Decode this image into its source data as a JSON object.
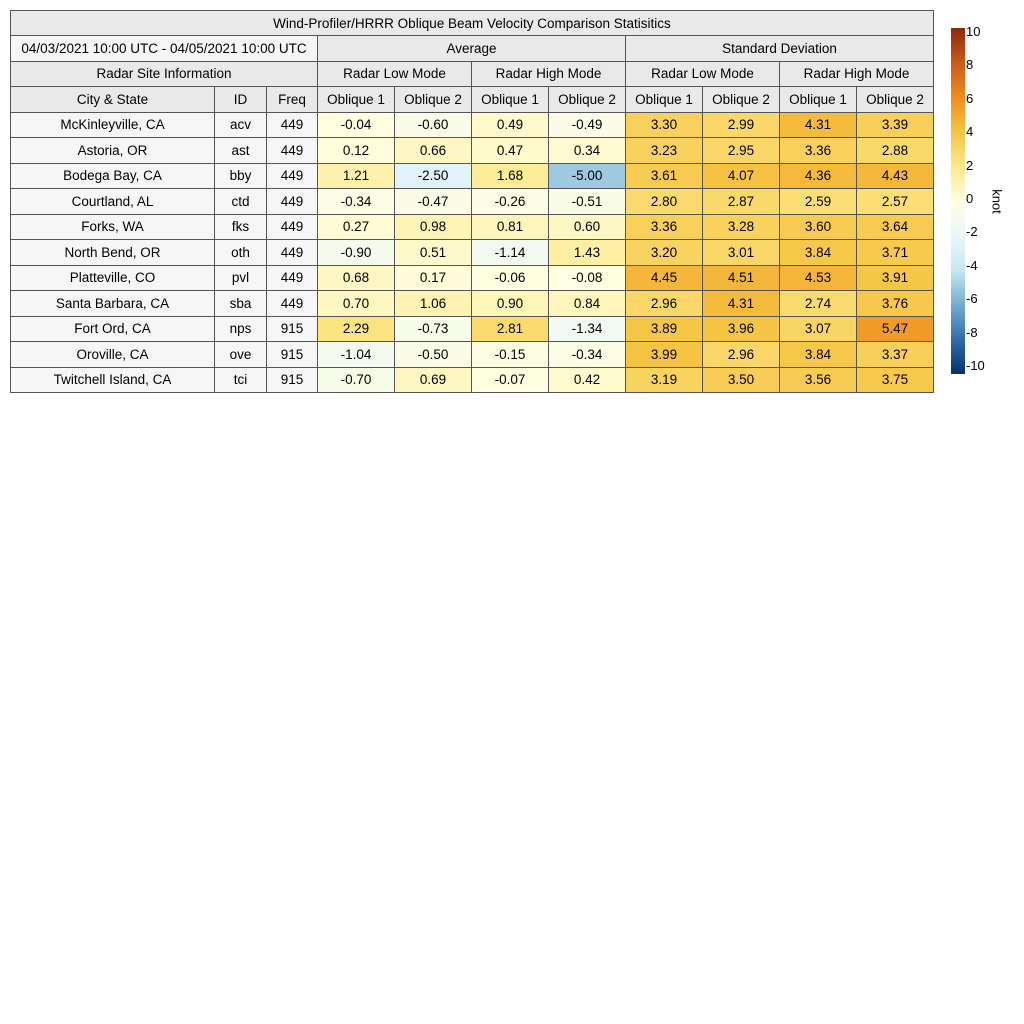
{
  "chart_data": {
    "type": "heatmap",
    "title": "Wind-Profiler/HRRR Oblique Beam Velocity Comparison Statisitics",
    "date_range": "04/03/2021 10:00 UTC - 04/05/2021 10:00 UTC",
    "groups": [
      "Average",
      "Standard Deviation"
    ],
    "subgroups": [
      "Radar Low Mode",
      "Radar High Mode",
      "Radar Low Mode",
      "Radar High Mode"
    ],
    "site_group_label": "Radar Site Information",
    "site_columns": [
      "City & State",
      "ID",
      "Freq"
    ],
    "value_columns": [
      "Oblique 1",
      "Oblique 2",
      "Oblique 1",
      "Oblique 2",
      "Oblique 1",
      "Oblique 2",
      "Oblique 1",
      "Oblique 2"
    ],
    "rows": [
      {
        "city": "McKinleyville, CA",
        "id": "acv",
        "freq": "449",
        "values": [
          "-0.04",
          "-0.60",
          "0.49",
          "-0.49",
          "3.30",
          "2.99",
          "4.31",
          "3.39"
        ]
      },
      {
        "city": "Astoria, OR",
        "id": "ast",
        "freq": "449",
        "values": [
          "0.12",
          "0.66",
          "0.47",
          "0.34",
          "3.23",
          "2.95",
          "3.36",
          "2.88"
        ]
      },
      {
        "city": "Bodega Bay, CA",
        "id": "bby",
        "freq": "449",
        "values": [
          "1.21",
          "-2.50",
          "1.68",
          "-5.00",
          "3.61",
          "4.07",
          "4.36",
          "4.43"
        ]
      },
      {
        "city": "Courtland, AL",
        "id": "ctd",
        "freq": "449",
        "values": [
          "-0.34",
          "-0.47",
          "-0.26",
          "-0.51",
          "2.80",
          "2.87",
          "2.59",
          "2.57"
        ]
      },
      {
        "city": "Forks, WA",
        "id": "fks",
        "freq": "449",
        "values": [
          "0.27",
          "0.98",
          "0.81",
          "0.60",
          "3.36",
          "3.28",
          "3.60",
          "3.64"
        ]
      },
      {
        "city": "North Bend, OR",
        "id": "oth",
        "freq": "449",
        "values": [
          "-0.90",
          "0.51",
          "-1.14",
          "1.43",
          "3.20",
          "3.01",
          "3.84",
          "3.71"
        ]
      },
      {
        "city": "Platteville, CO",
        "id": "pvl",
        "freq": "449",
        "values": [
          "0.68",
          "0.17",
          "-0.06",
          "-0.08",
          "4.45",
          "4.51",
          "4.53",
          "3.91"
        ]
      },
      {
        "city": "Santa Barbara, CA",
        "id": "sba",
        "freq": "449",
        "values": [
          "0.70",
          "1.06",
          "0.90",
          "0.84",
          "2.96",
          "4.31",
          "2.74",
          "3.76"
        ]
      },
      {
        "city": "Fort Ord, CA",
        "id": "nps",
        "freq": "915",
        "values": [
          "2.29",
          "-0.73",
          "2.81",
          "-1.34",
          "3.89",
          "3.96",
          "3.07",
          "5.47"
        ]
      },
      {
        "city": "Oroville, CA",
        "id": "ove",
        "freq": "915",
        "values": [
          "-1.04",
          "-0.50",
          "-0.15",
          "-0.34",
          "3.99",
          "2.96",
          "3.84",
          "3.37"
        ]
      },
      {
        "city": "Twitchell Island, CA",
        "id": "tci",
        "freq": "915",
        "values": [
          "-0.70",
          "0.69",
          "-0.07",
          "0.42",
          "3.19",
          "3.50",
          "3.56",
          "3.75"
        ]
      }
    ],
    "colorbar": {
      "label": "knot",
      "range": [
        -10,
        10
      ],
      "ticks": [
        "10",
        "8",
        "6",
        "4",
        "2",
        "0",
        "-2",
        "-4",
        "-6",
        "-8",
        "-10"
      ],
      "colormap": [
        "#08306b",
        "#2f6eab",
        "#74add1",
        "#c6e7f0",
        "#e9f7fb",
        "#fffee0",
        "#fde98a",
        "#f6c443",
        "#ee8c1e",
        "#cd5818",
        "#8b2a0a"
      ]
    }
  }
}
